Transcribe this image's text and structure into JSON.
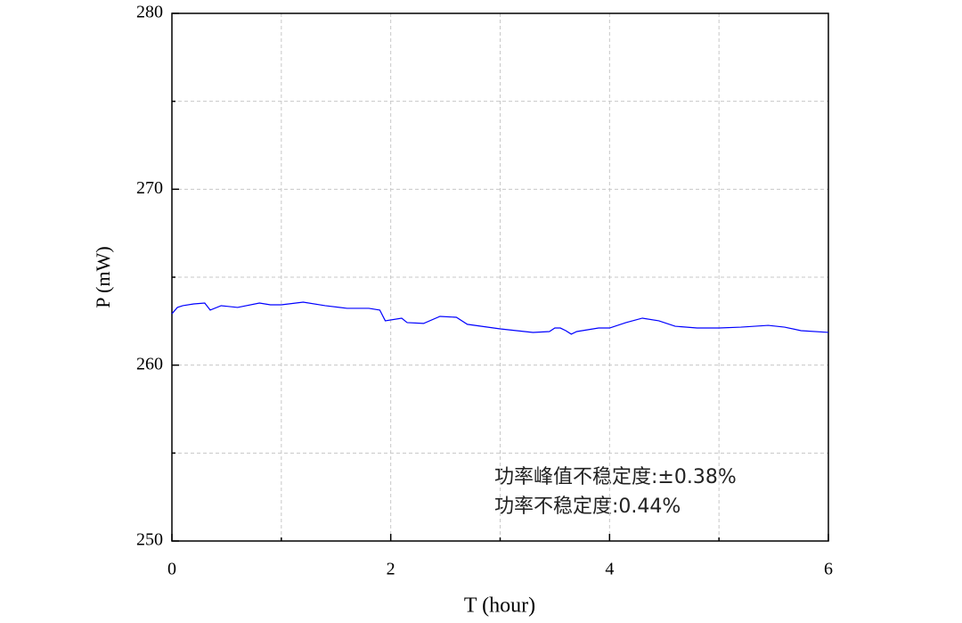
{
  "chart_data": {
    "type": "line",
    "x_label": "T (hour)",
    "y_label": "P (mW)",
    "annotations": [
      "功率峰值不稳定度:±0.38%",
      "功率不稳定度:0.44%"
    ],
    "xlim": [
      0,
      6
    ],
    "xticks": [
      0,
      2,
      4,
      6
    ],
    "minor_xticks": [
      1,
      3,
      5
    ],
    "ylim": [
      250,
      280
    ],
    "yticks": [
      250,
      260,
      270,
      280
    ],
    "minor_yticks": [
      255,
      265,
      275
    ],
    "grid": true,
    "series": [
      {
        "color": "#0000ff",
        "x": [
          0,
          0.05,
          0.1,
          0.2,
          0.3,
          0.35,
          0.45,
          0.6,
          0.8,
          0.9,
          1.0,
          1.2,
          1.4,
          1.6,
          1.8,
          1.9,
          1.95,
          2.1,
          2.15,
          2.3,
          2.45,
          2.6,
          2.7,
          3.0,
          3.3,
          3.45,
          3.5,
          3.55,
          3.6,
          3.65,
          3.7,
          3.9,
          4.0,
          4.15,
          4.3,
          4.45,
          4.6,
          4.8,
          5.0,
          5.2,
          5.45,
          5.6,
          5.75,
          6.0
        ],
        "values": [
          262.92,
          263.28,
          263.38,
          263.48,
          263.53,
          263.13,
          263.38,
          263.28,
          263.53,
          263.43,
          263.43,
          263.58,
          263.38,
          263.23,
          263.23,
          263.13,
          262.52,
          262.67,
          262.42,
          262.37,
          262.77,
          262.72,
          262.32,
          262.06,
          261.86,
          261.91,
          262.11,
          262.11,
          261.96,
          261.76,
          261.91,
          262.11,
          262.11,
          262.42,
          262.67,
          262.52,
          262.21,
          262.11,
          262.11,
          262.16,
          262.26,
          262.16,
          261.96,
          261.86
        ]
      }
    ]
  }
}
